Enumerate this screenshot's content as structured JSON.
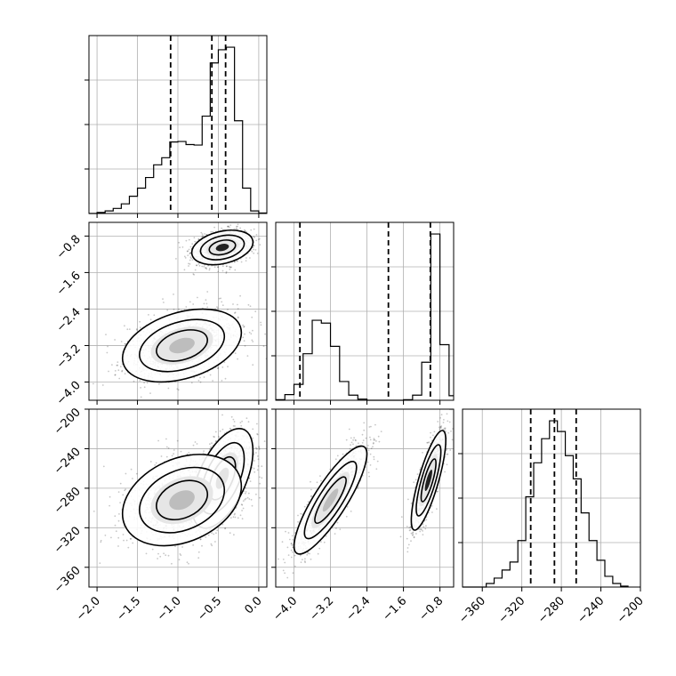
{
  "chart_data": {
    "type": "corner",
    "parameters": [
      {
        "range": [
          -2.1,
          0.1
        ],
        "ticks": [
          "−2.0",
          "−1.5",
          "−1.0",
          "−0.5",
          "0.0"
        ],
        "tick_values": [
          -2.0,
          -1.5,
          -1.0,
          -0.5,
          0.0
        ]
      },
      {
        "range": [
          -4.4,
          -0.5
        ],
        "ticks": [
          "−4.0",
          "−3.2",
          "−2.4",
          "−1.6",
          "−0.8"
        ],
        "tick_values": [
          -4.0,
          -3.2,
          -2.4,
          -1.6,
          -0.8
        ]
      },
      {
        "range": [
          -380,
          -200
        ],
        "ticks": [
          "−360",
          "−320",
          "−280",
          "−240",
          "−200"
        ],
        "tick_values": [
          -360,
          -320,
          -280,
          -240,
          -200
        ]
      }
    ],
    "marginals": [
      {
        "param": 0,
        "bin_edges": [
          -2.1,
          -2.0,
          -1.9,
          -1.8,
          -1.7,
          -1.6,
          -1.5,
          -1.4,
          -1.3,
          -1.2,
          -1.1,
          -1.0,
          -0.9,
          -0.8,
          -0.7,
          -0.6,
          -0.5,
          -0.4,
          -0.3,
          -0.2,
          -0.1,
          0.0,
          0.1
        ],
        "counts": [
          0.0,
          2,
          5,
          10,
          19,
          34,
          50,
          71,
          96,
          110,
          141,
          142,
          136,
          135,
          192,
          297,
          323,
          328,
          183,
          50,
          5,
          1
        ],
        "quantiles": [
          -1.09,
          -0.58,
          -0.41
        ]
      },
      {
        "param": 1,
        "bin_edges": [
          -4.4,
          -4.2,
          -4.0,
          -3.8,
          -3.6,
          -3.4,
          -3.2,
          -3.0,
          -2.8,
          -2.6,
          -2.4,
          -2.2,
          -2.0,
          -1.8,
          -1.6,
          -1.4,
          -1.2,
          -1.0,
          -0.8,
          -0.6,
          -0.5
        ],
        "counts": [
          1,
          10,
          28,
          82,
          141,
          136,
          95,
          33,
          9,
          2,
          0,
          0,
          0,
          0,
          1,
          9,
          67,
          293,
          98,
          8
        ],
        "quantiles": [
          -3.87,
          -1.93,
          -1.01
        ]
      },
      {
        "param": 2,
        "bin_edges": [
          -380,
          -372,
          -364,
          -356,
          -348,
          -340,
          -332,
          -324,
          -316,
          -308,
          -300,
          -292,
          -284,
          -276,
          -268,
          -260,
          -252,
          -244,
          -236,
          -228,
          -220,
          -212
        ],
        "counts": [
          0,
          0,
          0,
          4,
          10,
          19,
          28,
          52,
          101,
          139,
          166,
          186,
          174,
          147,
          121,
          83,
          52,
          30,
          12,
          4,
          1
        ],
        "quantiles": [
          -311,
          -287,
          -265
        ]
      }
    ],
    "joint": [
      {
        "params": [
          0,
          1
        ],
        "modes": [
          {
            "center": [
              -0.45,
              -1.05
            ],
            "spread": [
              0.18,
              0.18
            ],
            "weight": 0.5,
            "rho": 0.3
          },
          {
            "center": [
              -0.95,
              -3.2
            ],
            "spread": [
              0.35,
              0.38
            ],
            "weight": 0.5,
            "rho": 0.35
          }
        ]
      },
      {
        "params": [
          0,
          2
        ],
        "modes": [
          {
            "center": [
              -0.45,
              -270
            ],
            "spread": [
              0.18,
              24
            ],
            "weight": 0.5,
            "rho": 0.55
          },
          {
            "center": [
              -0.95,
              -292
            ],
            "spread": [
              0.35,
              22
            ],
            "weight": 0.5,
            "rho": 0.3
          }
        ]
      },
      {
        "params": [
          1,
          2
        ],
        "modes": [
          {
            "center": [
              -1.05,
              -272
            ],
            "spread": [
              0.18,
              24
            ],
            "weight": 0.5,
            "rho": 0.8
          },
          {
            "center": [
              -3.2,
              -292
            ],
            "spread": [
              0.38,
              26
            ],
            "weight": 0.5,
            "rho": 0.85
          }
        ]
      }
    ],
    "grid": true,
    "title": "",
    "xlabel": "",
    "ylabel": ""
  }
}
